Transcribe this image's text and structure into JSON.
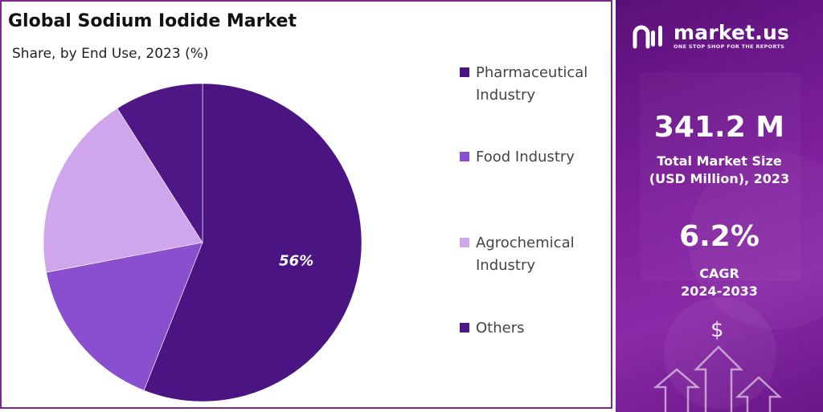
{
  "chart": {
    "title": "Global Sodium Iodide Market",
    "subtitle": "Share, by End Use, 2023 (%)"
  },
  "chart_data": {
    "type": "pie",
    "title": "Global Sodium Iodide Market",
    "subtitle": "Share, by End Use, 2023 (%)",
    "categories": [
      "Pharmaceutical Industry",
      "Food Industry",
      "Agrochemical Industry",
      "Others"
    ],
    "values": [
      56,
      16,
      19,
      9
    ],
    "data_labels": [
      "56%",
      "",
      "",
      ""
    ],
    "colors": [
      "#4a1582",
      "#8a4fce",
      "#cfa6ec",
      "#4e1785"
    ],
    "legend_position": "right"
  },
  "legend": [
    {
      "label_line1": "Pharmaceutical",
      "label_line2": "Industry",
      "color": "#4a1582"
    },
    {
      "label_line1": "Food Industry",
      "label_line2": "",
      "color": "#8a4fce"
    },
    {
      "label_line1": "Agrochemical",
      "label_line2": "Industry",
      "color": "#cfa6ec"
    },
    {
      "label_line1": "Others",
      "label_line2": "",
      "color": "#4e1785"
    }
  ],
  "sidebar": {
    "brand": "market.us",
    "tagline": "ONE STOP SHOP FOR THE REPORTS",
    "market_size_value": "341.2 M",
    "market_size_label_1": "Total Market Size",
    "market_size_label_2": "(USD Million), 2023",
    "cagr_value": "6.2%",
    "cagr_label_1": "CAGR",
    "cagr_label_2": "2024-2033",
    "dollar_symbol": "$",
    "logo_icon": "market-us-logo-icon",
    "decor_icon": "growth-arrows-icon"
  }
}
